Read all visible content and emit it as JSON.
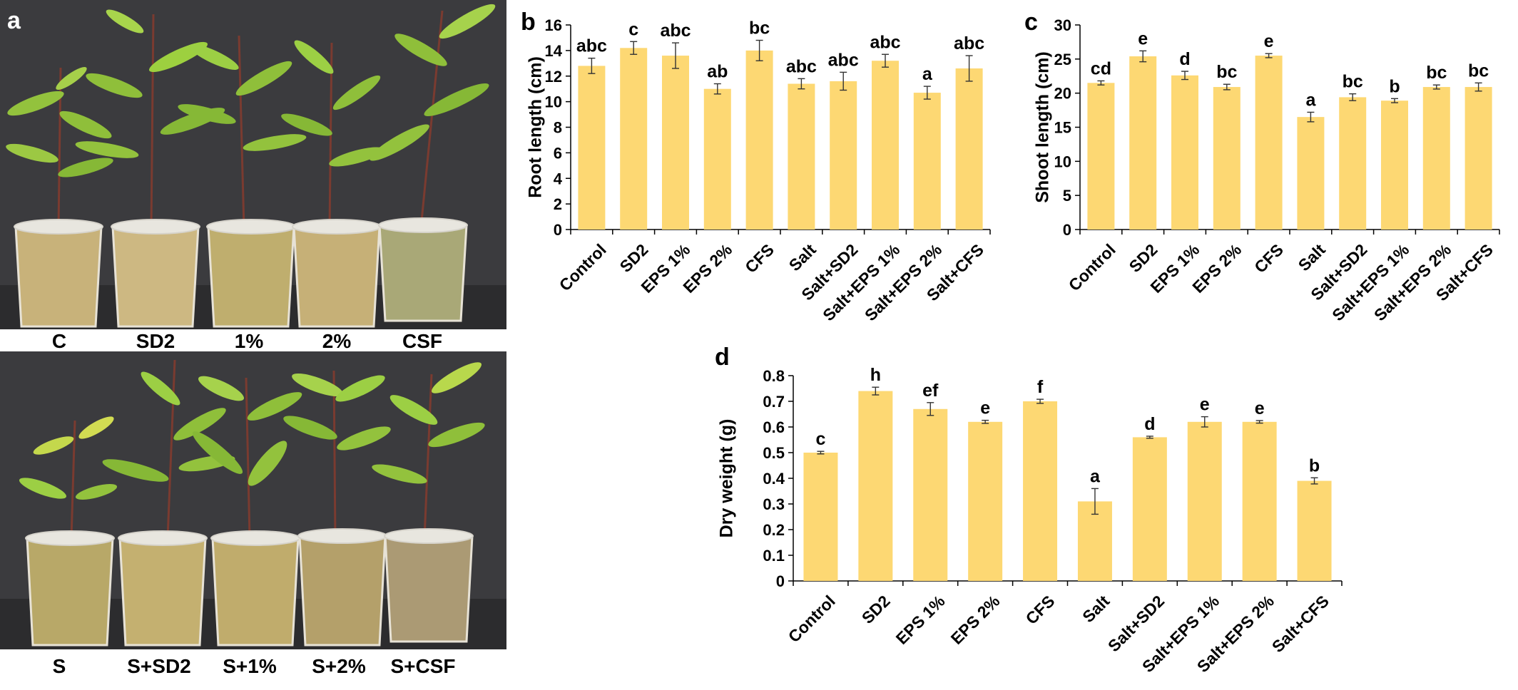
{
  "panel_a": {
    "letter": "a",
    "top_row_labels": [
      "C",
      "SD2",
      "1%",
      "2%",
      "CSF"
    ],
    "bottom_row_labels": [
      "S",
      "S+SD2",
      "S+1%",
      "S+2%",
      "S+CSF"
    ]
  },
  "colors": {
    "bar_fill": "#FDD873",
    "axis": "#000000",
    "photo_backdrop": "#3a3a3c",
    "pot_fill": "#c9b27a",
    "leaf": "#8fbf3a"
  },
  "chart_data": [
    {
      "panel": "b",
      "type": "bar",
      "categories": [
        "Control",
        "SD2",
        "EPS 1%",
        "EPS 2%",
        "CFS",
        "Salt",
        "Salt+SD2",
        "Salt+EPS 1%",
        "Salt+EPS 2%",
        "Salt+CFS"
      ],
      "values": [
        12.8,
        14.2,
        13.6,
        11.0,
        14.0,
        11.4,
        11.6,
        13.2,
        10.7,
        12.6
      ],
      "errors": [
        0.6,
        0.5,
        1.0,
        0.4,
        0.8,
        0.4,
        0.7,
        0.5,
        0.5,
        1.0
      ],
      "significance": [
        "abc",
        "c",
        "abc",
        "ab",
        "bc",
        "abc",
        "abc",
        "abc",
        "a",
        "abc"
      ],
      "xlabel": "",
      "ylabel": "Root length (cm)",
      "ylim": [
        0,
        16
      ],
      "yticks": [
        0,
        2,
        4,
        6,
        8,
        10,
        12,
        14,
        16
      ],
      "grid": false,
      "legend": "none"
    },
    {
      "panel": "c",
      "type": "bar",
      "categories": [
        "Control",
        "SD2",
        "EPS 1%",
        "EPS 2%",
        "CFS",
        "Salt",
        "Salt+SD2",
        "Salt+EPS 1%",
        "Salt+EPS 2%",
        "Salt+CFS"
      ],
      "values": [
        21.5,
        25.4,
        22.6,
        20.9,
        25.5,
        16.5,
        19.4,
        18.9,
        20.9,
        20.9
      ],
      "errors": [
        0.3,
        0.8,
        0.6,
        0.4,
        0.3,
        0.7,
        0.5,
        0.3,
        0.3,
        0.6
      ],
      "significance": [
        "cd",
        "e",
        "d",
        "bc",
        "e",
        "a",
        "bc",
        "b",
        "bc",
        "bc"
      ],
      "xlabel": "",
      "ylabel": "Shoot length (cm)",
      "ylim": [
        0,
        30
      ],
      "yticks": [
        0,
        5,
        10,
        15,
        20,
        25,
        30
      ],
      "grid": false,
      "legend": "none"
    },
    {
      "panel": "d",
      "type": "bar",
      "categories": [
        "Control",
        "SD2",
        "EPS 1%",
        "EPS 2%",
        "CFS",
        "Salt",
        "Salt+SD2",
        "Salt+EPS 1%",
        "Salt+EPS 2%",
        "Salt+CFS"
      ],
      "values": [
        0.5,
        0.74,
        0.67,
        0.62,
        0.7,
        0.31,
        0.56,
        0.62,
        0.62,
        0.39
      ],
      "errors": [
        0.005,
        0.015,
        0.025,
        0.006,
        0.008,
        0.05,
        0.004,
        0.02,
        0.005,
        0.012
      ],
      "significance": [
        "c",
        "h",
        "ef",
        "e",
        "f",
        "a",
        "d",
        "e",
        "e",
        "b"
      ],
      "xlabel": "",
      "ylabel": "Dry weight (g)",
      "ylim": [
        0,
        0.8
      ],
      "yticks": [
        "0",
        "0.1",
        "0.2",
        "0.3",
        "0.4",
        "0.5",
        "0.6",
        "0.7",
        "0.8"
      ],
      "grid": false,
      "legend": "none"
    }
  ]
}
